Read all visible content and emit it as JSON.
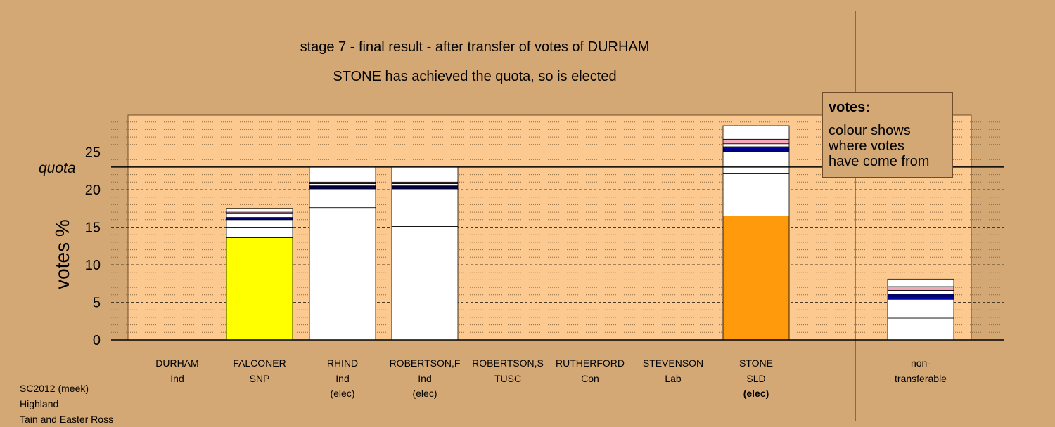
{
  "header": {
    "title": "stage 7 - final result - after transfer of votes of DURHAM",
    "subtitle": "STONE has achieved the quota, so is elected"
  },
  "legend": {
    "heading": "votes:",
    "text": [
      "colour shows",
      "where votes",
      "have come from"
    ]
  },
  "footer": {
    "lines": [
      "SC2012 (meek)",
      "Highland",
      "Tain and Easter Ross"
    ]
  },
  "colors": {
    "background": "#d4a874",
    "plot_area": "#fcc990",
    "SNP": "#ffff00",
    "SLD": "#ff9a0c",
    "white": "#ffffff",
    "blue": "#0000cc",
    "navy": "#00007a",
    "pink": "#f4a7b9"
  },
  "chart_data": {
    "type": "bar",
    "stacked": true,
    "ylabel": "votes %",
    "ylim": [
      0,
      30
    ],
    "yticks": [
      0,
      5,
      10,
      15,
      20,
      25
    ],
    "quota": 23,
    "quota_label": "quota",
    "grid": true,
    "legend_position": "top-right",
    "categories": [
      {
        "name": "DURHAM",
        "party": "Ind",
        "status": ""
      },
      {
        "name": "FALCONER",
        "party": "SNP",
        "status": ""
      },
      {
        "name": "RHIND",
        "party": "Ind",
        "status": "(elec)"
      },
      {
        "name": "ROBERTSON,F",
        "party": "Ind",
        "status": "(elec)"
      },
      {
        "name": "ROBERTSON,S",
        "party": "TUSC",
        "status": ""
      },
      {
        "name": "RUTHERFORD",
        "party": "Con",
        "status": ""
      },
      {
        "name": "STEVENSON",
        "party": "Lab",
        "status": ""
      },
      {
        "name": "STONE",
        "party": "SLD",
        "status": "(elec)"
      },
      {
        "name": "non-",
        "party": "transferable",
        "status": ""
      }
    ],
    "bars": [
      {
        "category": "DURHAM",
        "total": 0,
        "segments": []
      },
      {
        "category": "FALCONER",
        "total": 17.5,
        "segments": [
          {
            "value": 13.6,
            "color": "#ffff00"
          },
          {
            "value": 1.4,
            "color": "#ffffff"
          },
          {
            "value": 1.0,
            "color": "#ffffff"
          },
          {
            "value": 0.2,
            "color": "#00007a"
          },
          {
            "value": 0.1,
            "color": "#0000cc"
          },
          {
            "value": 0.5,
            "color": "#ffffff"
          },
          {
            "value": 0.2,
            "color": "#f4a7b9"
          },
          {
            "value": 0.5,
            "color": "#ffffff"
          }
        ]
      },
      {
        "category": "RHIND",
        "total": 23.0,
        "segments": [
          {
            "value": 17.6,
            "color": "#ffffff"
          },
          {
            "value": 2.5,
            "color": "#ffffff"
          },
          {
            "value": 0.3,
            "color": "#00007a"
          },
          {
            "value": 0.1,
            "color": "#0000cc"
          },
          {
            "value": 0.3,
            "color": "#ffffff"
          },
          {
            "value": 0.2,
            "color": "#f4a7b9"
          },
          {
            "value": 2.0,
            "color": "#ffffff"
          }
        ]
      },
      {
        "category": "ROBERTSON,F",
        "total": 23.0,
        "segments": [
          {
            "value": 15.1,
            "color": "#ffffff"
          },
          {
            "value": 5.0,
            "color": "#ffffff"
          },
          {
            "value": 0.3,
            "color": "#00007a"
          },
          {
            "value": 0.1,
            "color": "#0000cc"
          },
          {
            "value": 0.3,
            "color": "#ffffff"
          },
          {
            "value": 0.2,
            "color": "#f4a7b9"
          },
          {
            "value": 2.0,
            "color": "#ffffff"
          }
        ]
      },
      {
        "category": "ROBERTSON,S",
        "total": 0,
        "segments": []
      },
      {
        "category": "RUTHERFORD",
        "total": 0,
        "segments": []
      },
      {
        "category": "STEVENSON",
        "total": 0,
        "segments": []
      },
      {
        "category": "STONE",
        "total": 28.5,
        "segments": [
          {
            "value": 16.5,
            "color": "#ff9a0c"
          },
          {
            "value": 5.6,
            "color": "#ffffff"
          },
          {
            "value": 2.9,
            "color": "#ffffff"
          },
          {
            "value": 0.4,
            "color": "#00007a"
          },
          {
            "value": 0.3,
            "color": "#0000cc"
          },
          {
            "value": 0.4,
            "color": "#ffffff"
          },
          {
            "value": 0.6,
            "color": "#f4a7b9"
          },
          {
            "value": 1.8,
            "color": "#ffffff"
          }
        ]
      },
      {
        "category": "non-transferable",
        "total": 8.1,
        "segments": [
          {
            "value": 2.9,
            "color": "#ffffff"
          },
          {
            "value": 2.5,
            "color": "#ffffff"
          },
          {
            "value": 0.4,
            "color": "#0000cc"
          },
          {
            "value": 0.3,
            "color": "#00007a"
          },
          {
            "value": 0.5,
            "color": "#ffffff"
          },
          {
            "value": 0.5,
            "color": "#f4a7b9"
          },
          {
            "value": 1.0,
            "color": "#ffffff"
          }
        ]
      }
    ]
  }
}
